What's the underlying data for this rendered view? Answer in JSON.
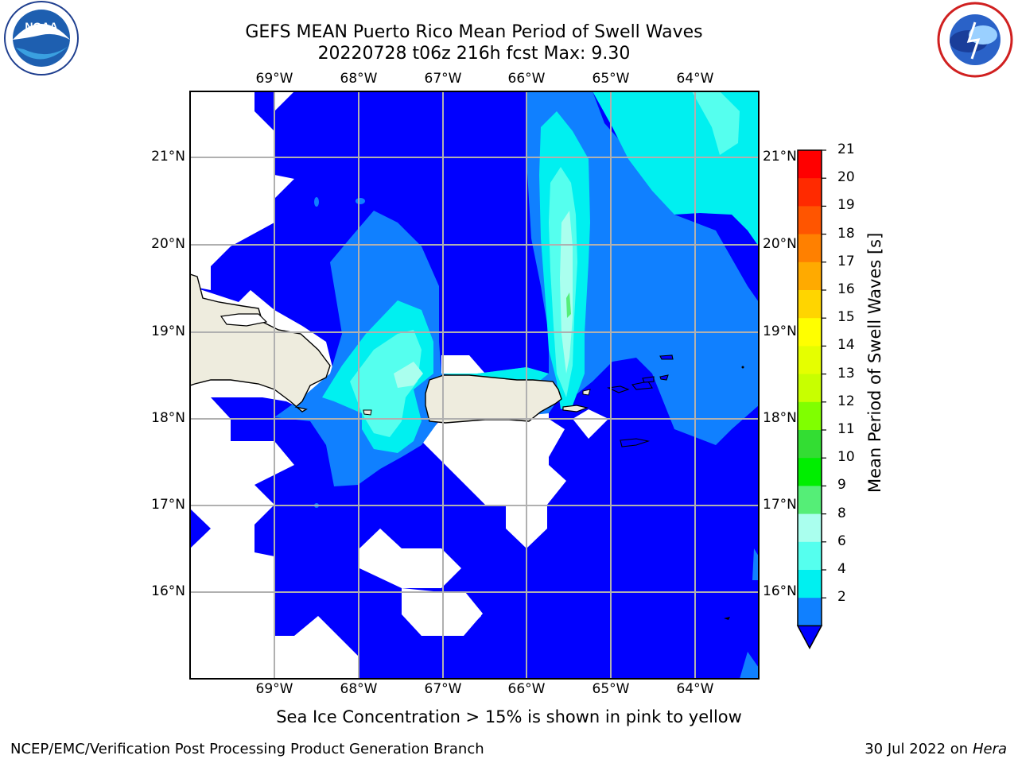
{
  "header": {
    "title_line1": "GEFS MEAN Puerto Rico Mean Period of Swell Waves",
    "title_line2": "20220728 t06z 216h fcst   Max: 9.30",
    "left_logo_text": "NOAA",
    "left_logo_ring_text": "NATIONAL OCEANIC AND ATMOSPHERIC ADMINISTRATION · U.S. DEPARTMENT OF COMMERCE",
    "right_logo_ring_text": "NATIONAL WEATHER SERVICE"
  },
  "map": {
    "lon_labels": [
      "69°W",
      "68°W",
      "67°W",
      "66°W",
      "65°W",
      "64°W"
    ],
    "lat_labels": [
      "21°N",
      "20°N",
      "19°N",
      "18°N",
      "17°N",
      "16°N"
    ],
    "land_color": "#eeecde",
    "missing_color": "#ffffff",
    "gridline_color": "#b0b0b0"
  },
  "colorbar": {
    "label": "Mean Period of Swell Waves [s]",
    "ticks": [
      "21",
      "20",
      "19",
      "18",
      "17",
      "16",
      "15",
      "14",
      "13",
      "12",
      "11",
      "10",
      "9",
      "8",
      "6",
      "4",
      "2"
    ],
    "colors": [
      "#ff0000",
      "#ff2a00",
      "#ff5500",
      "#ff8000",
      "#ffaa00",
      "#ffd500",
      "#ffff00",
      "#e5ff00",
      "#c8ff00",
      "#80ff00",
      "#33dd33",
      "#00ee00",
      "#55ee77",
      "#aaffee",
      "#55ffee",
      "#00f0f0",
      "#1080ff"
    ],
    "under_color": "#0000ff"
  },
  "footer": {
    "note": "Sea Ice Concentration > 15% is shown in pink to yellow",
    "branch": "NCEP/EMC/Verification Post Processing Product Generation Branch",
    "date_prefix": "30 Jul 2022 on",
    "machine": "Hera"
  }
}
